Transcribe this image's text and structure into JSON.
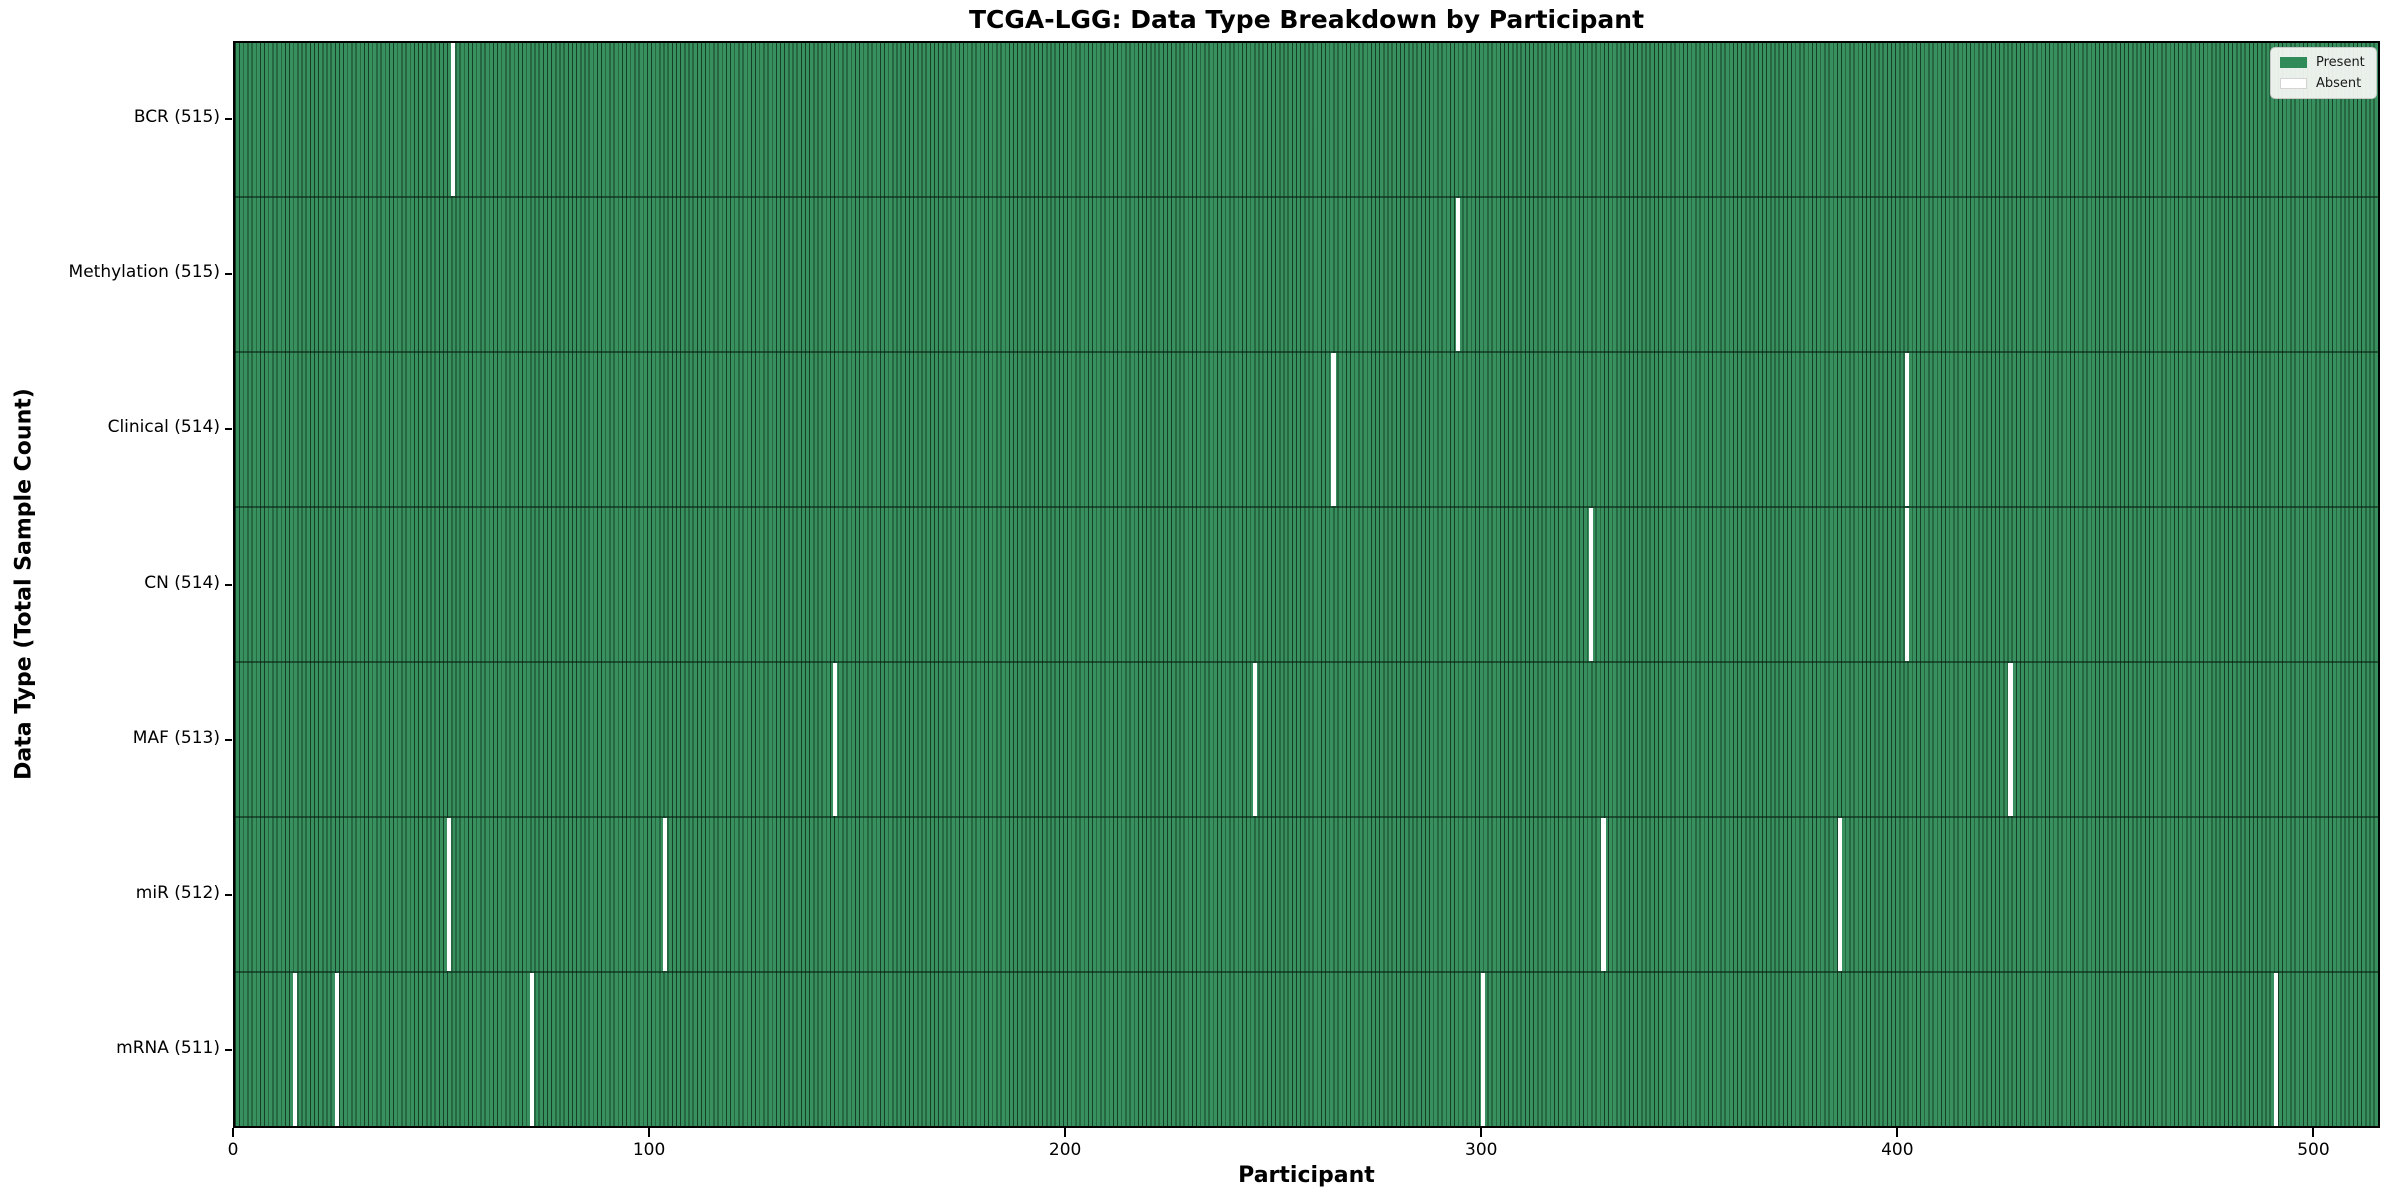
{
  "title": "TCGA-LGG: Data Type Breakdown by Participant",
  "xlabel": "Participant",
  "ylabel": "Data Type (Total Sample Count)",
  "legend": {
    "present_label": "Present",
    "absent_label": "Absent"
  },
  "colors": {
    "present": "#2F8B57",
    "absent": "#FFFFFF",
    "bar_edge": "rgba(0,0,0,0.55)",
    "row_divider": "rgba(5,28,16,0.55)",
    "axis": "#000000",
    "legend_bg": "#FAFAF7",
    "legend_border": "#C9C9C9"
  },
  "chart_data": {
    "type": "heatmap",
    "title": "TCGA-LGG: Data Type Breakdown by Participant",
    "xlabel": "Participant",
    "ylabel": "Data Type (Total Sample Count)",
    "legend": [
      "Present",
      "Absent"
    ],
    "legend_position": "upper right",
    "grid": false,
    "total_participants": 516,
    "x_axis": {
      "ticks": [
        0,
        100,
        200,
        300,
        400,
        500
      ],
      "range": [
        0,
        516
      ]
    },
    "rows": [
      {
        "data_type": "BCR",
        "label": "BCR (515)",
        "present_count": 515,
        "absent_count": 1,
        "absent_participants": [
          52
        ]
      },
      {
        "data_type": "Methylation",
        "label": "Methylation (515)",
        "present_count": 515,
        "absent_count": 1,
        "absent_participants": [
          294
        ]
      },
      {
        "data_type": "Clinical",
        "label": "Clinical (514)",
        "present_count": 514,
        "absent_count": 2,
        "absent_participants": [
          264,
          402
        ]
      },
      {
        "data_type": "CN",
        "label": "CN (514)",
        "present_count": 514,
        "absent_count": 2,
        "absent_participants": [
          326,
          402
        ]
      },
      {
        "data_type": "MAF",
        "label": "MAF (513)",
        "present_count": 513,
        "absent_count": 3,
        "absent_participants": [
          144,
          245,
          427
        ]
      },
      {
        "data_type": "miR",
        "label": "miR (512)",
        "present_count": 512,
        "absent_count": 4,
        "absent_participants": [
          51,
          103,
          329,
          386
        ]
      },
      {
        "data_type": "mRNA",
        "label": "mRNA (511)",
        "present_count": 511,
        "absent_count": 5,
        "absent_participants": [
          14,
          24,
          71,
          300,
          491
        ]
      }
    ]
  }
}
